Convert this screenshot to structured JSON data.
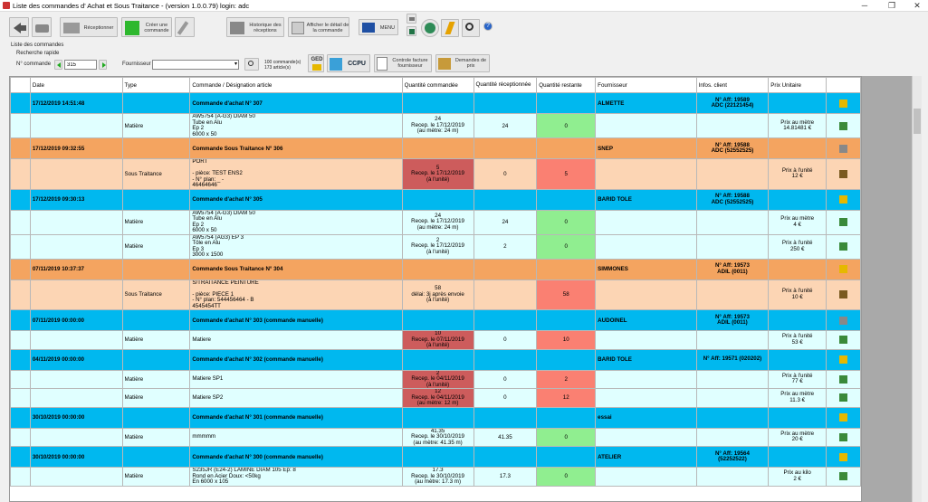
{
  "window": {
    "title": "Liste des commandes d' Achat et Sous Traitance - (version 1.0.0.79) login: adc"
  },
  "toolbar": {
    "receptionner": "Réceptionner",
    "creer": "Créer une commande",
    "historique": "Historique des réceptions",
    "afficher": "Afficher le détail de la commande",
    "menu": "MENU"
  },
  "panel": {
    "title": "Liste des commandes",
    "quick": "Recherche rapide",
    "ncmd_label": "N° commande",
    "ncmd_value": "315",
    "fourn_label": "Fournisseur",
    "counts1": "100 commande(s)",
    "counts2": "173 article(s)",
    "ged": "GED",
    "ccpu": "CCPU",
    "controle": "Controle facture fournisseur",
    "demandes": "Demandes de prix"
  },
  "columns": [
    "Date",
    "Type",
    "Commande / Désignation article",
    "Quantité commandée",
    "Quantité réceptionnée",
    "Quantité restante",
    "Fournisseur",
    "Infos. client",
    "Prix Unitaire",
    ""
  ],
  "rows": [
    {
      "kind": "hdr-achat",
      "date": "17/12/2019 14:51:48",
      "cmd": "Commande d'achat N° 307",
      "fourn": "ALMETTE",
      "info1": "N° Aff: 19589",
      "info2": "ADC (22121454)",
      "icon": "folder-icon"
    },
    {
      "kind": "line-m",
      "type": "Matière",
      "desig": "AW5754 (A-G3) DIAM 50\nTube en Alu\nEp 2\n6000 x 50",
      "qcmd": "24\nRecep. le 17/12/2019\n(au mètre: 24 m)",
      "qrec": "24",
      "qrest": "0",
      "rest": "green",
      "prix": "Prix au mètre\n14.81481 €",
      "icon": "boxes-icon"
    },
    {
      "kind": "hdr-st",
      "date": "17/12/2019 09:32:55",
      "cmd": "Commande Sous Traitance N° 306",
      "fourn": "SNEP",
      "info1": "N° Aff: 19588",
      "info2": "ADC (52552525)",
      "icon": "printer-icon"
    },
    {
      "kind": "line-s",
      "type": "Sous Traitance",
      "desig": "PORT\n\n- pièce: TEST ENS2\n- N° plan: _ -\n46464646",
      "qcmd": "5\nRecep. le 17/12/2019\n(à l'unité)",
      "qcmdred": true,
      "qrec": "0",
      "qrest": "5",
      "rest": "red",
      "prix": "Prix à l'unité\n12 €",
      "icon": "truck-icon"
    },
    {
      "kind": "hdr-achat",
      "date": "17/12/2019 09:30:13",
      "cmd": "Commande d'achat N° 305",
      "fourn": "BARID TOLE",
      "info1": "N° Aff: 19588",
      "info2": "ADC (52552525)",
      "icon": "folder-icon"
    },
    {
      "kind": "line-m",
      "type": "Matière",
      "desig": "AW5754 (A-G3) DIAM 50\nTube en Alu\nEp 2\n6000 x 50",
      "qcmd": "24\nRecep. le 17/12/2019\n(au mètre: 24 m)",
      "qrec": "24",
      "qrest": "0",
      "rest": "green",
      "prix": "Prix au mètre\n4 €",
      "icon": "boxes-icon"
    },
    {
      "kind": "line-m",
      "type": "Matière",
      "desig": "AW5754 (AG3) EP 3\nTôle en Alu\nEp 3\n3000 x 1500",
      "qcmd": "2\nRecep. le 17/12/2019\n(à l'unité)",
      "qrec": "2",
      "qrest": "0",
      "rest": "green",
      "prix": "Prix à l'unité\n250 €",
      "icon": "boxes-icon"
    },
    {
      "kind": "hdr-st",
      "date": "07/11/2019 10:37:37",
      "cmd": "Commande Sous Traitance N° 304",
      "fourn": "SIMMONES",
      "info1": "N° Aff: 19573",
      "info2": "ADIL (0011)",
      "icon": "folder-icon"
    },
    {
      "kind": "line-s",
      "type": "Sous Traitance",
      "desig": "S/TRAITANCE PEINTURE\n\n- pièce: PIECE 1\n- N° plan: 544456464 - B\n4545454TT",
      "qcmd": "58\ndélai: 3j après envoie\n(à l'unité)",
      "qrec": "",
      "qrest": "58",
      "rest": "red",
      "prix": "Prix à l'unité\n10 €",
      "icon": "truck-icon"
    },
    {
      "kind": "hdr-achat",
      "date": "07/11/2019 00:00:00",
      "cmd": "Commande d'achat N° 303  (commande manuelle)",
      "fourn": "AUDOINEL",
      "info1": "N° Aff: 19573",
      "info2": "ADIL (0011)",
      "icon": "printer-icon"
    },
    {
      "kind": "line-m",
      "type": "Matière",
      "desig": "Matiere",
      "qcmd": "10\nRecep. le 07/11/2019\n(à l'unité)",
      "qcmdred": true,
      "qrec": "0",
      "qrest": "10",
      "rest": "red",
      "prix": "Prix à l'unité\n53 €",
      "icon": "boxes-icon"
    },
    {
      "kind": "hdr-achat",
      "date": "04/11/2019 00:00:00",
      "cmd": "Commande d'achat N° 302  (commande manuelle)",
      "fourn": "BARID TOLE",
      "info1": "N° Aff: 19571 (020202)",
      "info2": "",
      "icon": "folder-icon"
    },
    {
      "kind": "line-m",
      "type": "Matière",
      "desig": "Matiere SP1",
      "qcmd": "2\nRecep. le 04/11/2019\n(à l'unité)",
      "qcmdred": true,
      "qrec": "0",
      "qrest": "2",
      "rest": "red",
      "prix": "Prix à l'unité\n77 €",
      "icon": "boxes-icon"
    },
    {
      "kind": "line-m",
      "type": "Matière",
      "desig": "Matiere SP2",
      "qcmd": "12\nRecep. le 04/11/2019\n(au mètre: 12 m)",
      "qcmdred": true,
      "qrec": "0",
      "qrest": "12",
      "rest": "red",
      "prix": "Prix au mètre\n11.3 €",
      "icon": "boxes-icon"
    },
    {
      "kind": "hdr-achat",
      "date": "30/10/2019 00:00:00",
      "cmd": "Commande d'achat N° 301  (commande manuelle)",
      "fourn": "essai",
      "info1": "",
      "info2": "",
      "icon": "folder-icon"
    },
    {
      "kind": "line-m",
      "type": "Matière",
      "desig": "mmmmm",
      "qcmd": "41.35\nRecep. le 30/10/2019\n(au mètre: 41.35 m)",
      "qrec": "41.35",
      "qrest": "0",
      "rest": "green",
      "prix": "Prix au mètre\n20 €",
      "icon": "boxes-icon"
    },
    {
      "kind": "hdr-achat",
      "date": "30/10/2019 00:00:00",
      "cmd": "Commande d'achat N° 300  (commande manuelle)",
      "fourn": "ATELIER",
      "info1": "N° Aff: 19564",
      "info2": "(52252522)",
      "icon": "folder-icon"
    },
    {
      "kind": "line-m",
      "type": "Matière",
      "desig": "S235JR (E24-2) LAMINE DIAM 105  Ep: 8\nRond en Acier Doux: <50kg\nEn      6000 x 105",
      "qcmd": "17.3\nRecep. le 30/10/2019\n(au mètre: 17.3 m)",
      "qrec": "17.3",
      "qrest": "0",
      "rest": "green",
      "prix": "Prix au kilo\n2 €",
      "icon": "boxes-icon"
    }
  ]
}
